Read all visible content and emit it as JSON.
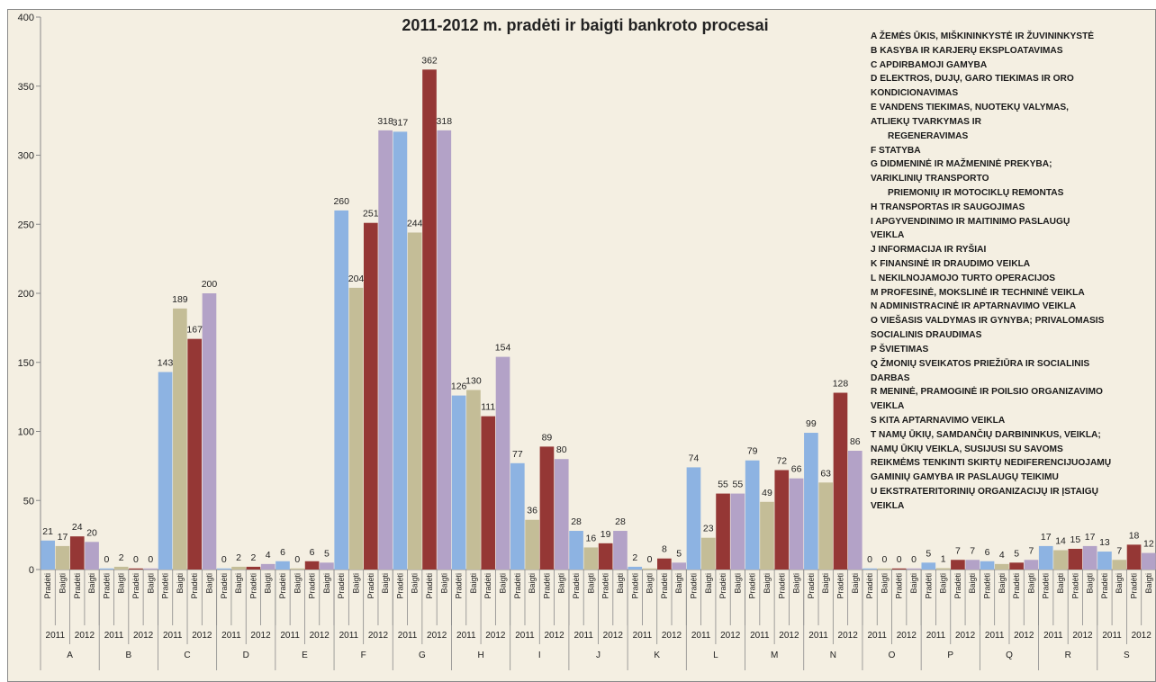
{
  "chart_data": {
    "type": "bar",
    "title": "2011-2012 m. pradėti ir baigti bankroto procesai",
    "xlabel": "",
    "ylabel": "",
    "ylim": [
      0,
      400
    ],
    "yticks": [
      0,
      50,
      100,
      150,
      200,
      250,
      300,
      350,
      400
    ],
    "grid": false,
    "legend_position": "right",
    "colors": {
      "2011|Pradėti": "#8db3e2",
      "2011|Baigti": "#c4bd97",
      "2012|Pradėti": "#953735",
      "2012|Baigti": "#b3a2c7"
    },
    "sub_categories": [
      "Pradėti",
      "Baigti",
      "Pradėti",
      "Baigti"
    ],
    "years": [
      "2011",
      "2012"
    ],
    "groups": [
      {
        "name": "A",
        "values": [
          21,
          17,
          24,
          20
        ]
      },
      {
        "name": "B",
        "values": [
          0,
          2,
          0,
          0
        ]
      },
      {
        "name": "C",
        "values": [
          143,
          189,
          167,
          200
        ]
      },
      {
        "name": "D",
        "values": [
          0,
          2,
          2,
          4
        ]
      },
      {
        "name": "E",
        "values": [
          6,
          0,
          6,
          5
        ]
      },
      {
        "name": "F",
        "values": [
          260,
          204,
          251,
          318
        ]
      },
      {
        "name": "G",
        "values": [
          317,
          244,
          362,
          318
        ]
      },
      {
        "name": "H",
        "values": [
          126,
          130,
          111,
          154
        ]
      },
      {
        "name": "I",
        "values": [
          77,
          36,
          89,
          80
        ]
      },
      {
        "name": "J",
        "values": [
          28,
          16,
          19,
          28
        ]
      },
      {
        "name": "K",
        "values": [
          2,
          0,
          8,
          5
        ]
      },
      {
        "name": "L",
        "values": [
          74,
          23,
          55,
          55
        ]
      },
      {
        "name": "M",
        "values": [
          79,
          49,
          72,
          66
        ]
      },
      {
        "name": "N",
        "values": [
          99,
          63,
          128,
          86
        ]
      },
      {
        "name": "O",
        "values": [
          0,
          0,
          0,
          0
        ]
      },
      {
        "name": "P",
        "values": [
          5,
          1,
          7,
          7
        ]
      },
      {
        "name": "Q",
        "values": [
          6,
          4,
          5,
          7
        ]
      },
      {
        "name": "R",
        "values": [
          17,
          14,
          15,
          17
        ]
      },
      {
        "name": "S",
        "values": [
          13,
          7,
          18,
          12
        ]
      }
    ]
  },
  "legend_text": [
    {
      "text": "A   ŽEMĖS ŪKIS, MIŠKININKYSTĖ IR ŽUVININKYSTĖ",
      "indent": false
    },
    {
      "text": "B    KASYBA IR KARJERŲ EKSPLOATAVIMAS",
      "indent": false
    },
    {
      "text": "C   APDIRBAMOJI GAMYBA",
      "indent": false
    },
    {
      "text": "D     ELEKTROS, DUJŲ, GARO TIEKIMAS IR ORO",
      "indent": false
    },
    {
      "text": "KONDICIONAVIMAS",
      "indent": false
    },
    {
      "text": "E     VANDENS TIEKIMAS, NUOTEKŲ VALYMAS,",
      "indent": false
    },
    {
      "text": "ATLIEKŲ TVARKYMAS IR",
      "indent": false
    },
    {
      "text": "REGENERAVIMAS",
      "indent": true
    },
    {
      "text": "F     STATYBA",
      "indent": false
    },
    {
      "text": "G     DIDMENINĖ IR MAŽMENINĖ PREKYBA;",
      "indent": false
    },
    {
      "text": "VARIKLINIŲ TRANSPORTO",
      "indent": false
    },
    {
      "text": "PRIEMONIŲ IR MOTOCIKLŲ REMONTAS",
      "indent": true
    },
    {
      "text": "H     TRANSPORTAS IR SAUGOJIMAS",
      "indent": false
    },
    {
      "text": "I      APGYVENDINIMO IR MAITINIMO PASLAUGŲ",
      "indent": false
    },
    {
      "text": "VEIKLA",
      "indent": false
    },
    {
      "text": "J      INFORMACIJA IR RYŠIAI",
      "indent": false
    },
    {
      "text": "K   FINANSINĖ IR DRAUDIMO VEIKLA",
      "indent": false
    },
    {
      "text": "L     NEKILNOJAMOJO TURTO OPERACIJOS",
      "indent": false
    },
    {
      "text": "M    PROFESINĖ, MOKSLINĖ IR TECHNINĖ VEIKLA",
      "indent": false
    },
    {
      "text": "N     ADMINISTRACINĖ IR APTARNAVIMO VEIKLA",
      "indent": false
    },
    {
      "text": "O   VIEŠASIS VALDYMAS IR GYNYBA; PRIVALOMASIS",
      "indent": false
    },
    {
      "text": "SOCIALINIS DRAUDIMAS",
      "indent": false
    },
    {
      "text": "P     ŠVIETIMAS",
      "indent": false
    },
    {
      "text": "Q   ŽMONIŲ SVEIKATOS PRIEŽIŪRA IR SOCIALINIS",
      "indent": false
    },
    {
      "text": "DARBAS",
      "indent": false
    },
    {
      "text": "R     MENINĖ, PRAMOGINĖ IR POILSIO ORGANIZAVIMO",
      "indent": false
    },
    {
      "text": "VEIKLA",
      "indent": false
    },
    {
      "text": "S     KITA APTARNAVIMO VEIKLA",
      "indent": false
    },
    {
      "text": "T     NAMŲ ŪKIŲ, SAMDANČIŲ DARBININKUS, VEIKLA;",
      "indent": false
    },
    {
      "text": "  NAMŲ ŪKIŲ VEIKLA, SUSIJUSI SU SAVOMS",
      "indent": false
    },
    {
      "text": "REIKMĖMS TENKINTI SKIRTŲ NEDIFERENCIJUOJAMŲ",
      "indent": false
    },
    {
      "text": "GAMINIŲ GAMYBA IR PASLAUGŲ TEIKIMU",
      "indent": false
    },
    {
      "text": "U   EKSTRATERITORINIŲ ORGANIZACIJŲ IR ĮSTAIGŲ",
      "indent": false
    },
    {
      "text": "VEIKLA",
      "indent": false
    }
  ]
}
